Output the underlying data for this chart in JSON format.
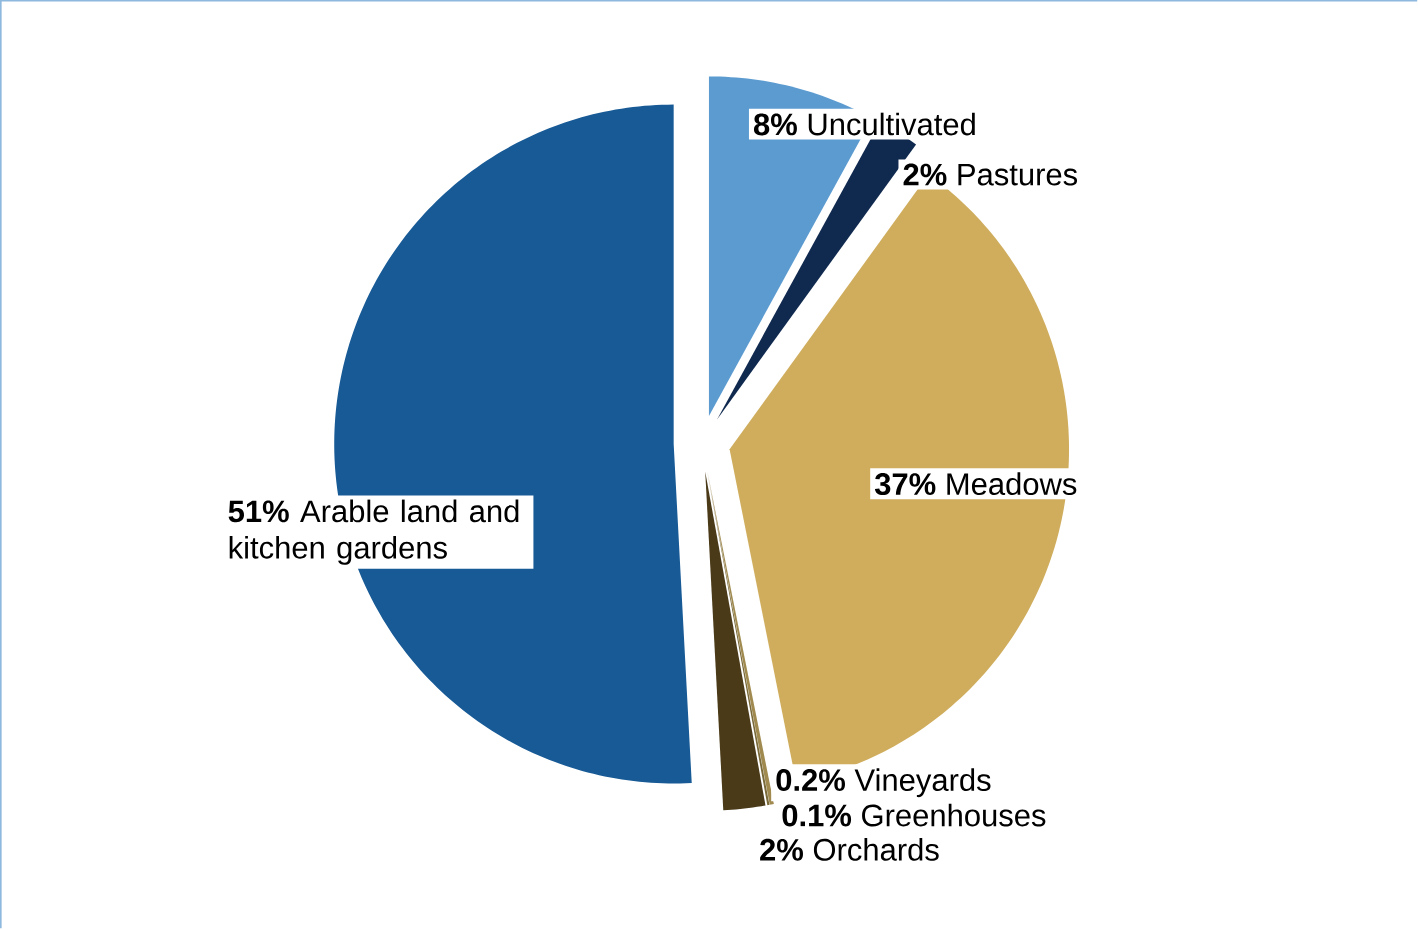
{
  "chart_data": {
    "type": "pie",
    "categories": [
      "Uncultivated",
      "Pastures",
      "Meadows",
      "Vineyards",
      "Greenhouses",
      "Orchards",
      "Arable land and kitchen gardens"
    ],
    "values": [
      8,
      2,
      37,
      0.2,
      0.1,
      2,
      51
    ],
    "value_labels": [
      "8%",
      "2%",
      "37%",
      "0.2%",
      "0.1%",
      "2%",
      "51%"
    ],
    "colors": [
      "#5b9bd0",
      "#10294f",
      "#cfad5d",
      "#a08a50",
      "#7a6a3a",
      "#4a3a18",
      "#175a96"
    ]
  }
}
